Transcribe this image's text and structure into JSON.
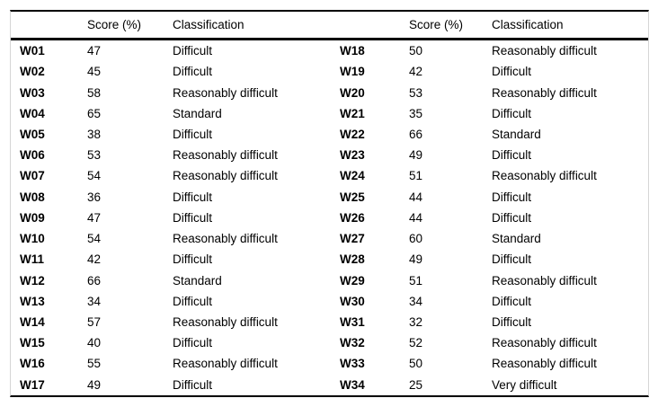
{
  "table": {
    "headers": {
      "score": "Score (%)",
      "classification": "Classification"
    },
    "left_rows": [
      {
        "id": "W01",
        "score": "47",
        "classification": "Difficult"
      },
      {
        "id": "W02",
        "score": "45",
        "classification": "Difficult"
      },
      {
        "id": "W03",
        "score": "58",
        "classification": "Reasonably difficult"
      },
      {
        "id": "W04",
        "score": "65",
        "classification": "Standard"
      },
      {
        "id": "W05",
        "score": "38",
        "classification": "Difficult"
      },
      {
        "id": "W06",
        "score": "53",
        "classification": "Reasonably difficult"
      },
      {
        "id": "W07",
        "score": "54",
        "classification": "Reasonably difficult"
      },
      {
        "id": "W08",
        "score": "36",
        "classification": "Difficult"
      },
      {
        "id": "W09",
        "score": "47",
        "classification": "Difficult"
      },
      {
        "id": "W10",
        "score": "54",
        "classification": "Reasonably difficult"
      },
      {
        "id": "W11",
        "score": "42",
        "classification": "Difficult"
      },
      {
        "id": "W12",
        "score": "66",
        "classification": "Standard"
      },
      {
        "id": "W13",
        "score": "34",
        "classification": "Difficult"
      },
      {
        "id": "W14",
        "score": "57",
        "classification": "Reasonably difficult"
      },
      {
        "id": "W15",
        "score": "40",
        "classification": "Difficult"
      },
      {
        "id": "W16",
        "score": "55",
        "classification": "Reasonably difficult"
      },
      {
        "id": "W17",
        "score": "49",
        "classification": "Difficult"
      }
    ],
    "right_rows": [
      {
        "id": "W18",
        "score": "50",
        "classification": "Reasonably difficult"
      },
      {
        "id": "W19",
        "score": "42",
        "classification": "Difficult"
      },
      {
        "id": "W20",
        "score": "53",
        "classification": "Reasonably difficult"
      },
      {
        "id": "W21",
        "score": "35",
        "classification": "Difficult"
      },
      {
        "id": "W22",
        "score": "66",
        "classification": "Standard"
      },
      {
        "id": "W23",
        "score": "49",
        "classification": "Difficult"
      },
      {
        "id": "W24",
        "score": "51",
        "classification": "Reasonably difficult"
      },
      {
        "id": "W25",
        "score": "44",
        "classification": "Difficult"
      },
      {
        "id": "W26",
        "score": "44",
        "classification": "Difficult"
      },
      {
        "id": "W27",
        "score": "60",
        "classification": "Standard"
      },
      {
        "id": "W28",
        "score": "49",
        "classification": "Difficult"
      },
      {
        "id": "W29",
        "score": "51",
        "classification": "Reasonably difficult"
      },
      {
        "id": "W30",
        "score": "34",
        "classification": "Difficult"
      },
      {
        "id": "W31",
        "score": "32",
        "classification": "Difficult"
      },
      {
        "id": "W32",
        "score": "52",
        "classification": "Reasonably difficult"
      },
      {
        "id": "W33",
        "score": "50",
        "classification": "Reasonably difficult"
      },
      {
        "id": "W34",
        "score": "25",
        "classification": "Very difficult"
      }
    ]
  },
  "colors": {
    "rule": "#000000",
    "side_border": "#d6d6d6",
    "background": "#ffffff",
    "text": "#000000"
  }
}
